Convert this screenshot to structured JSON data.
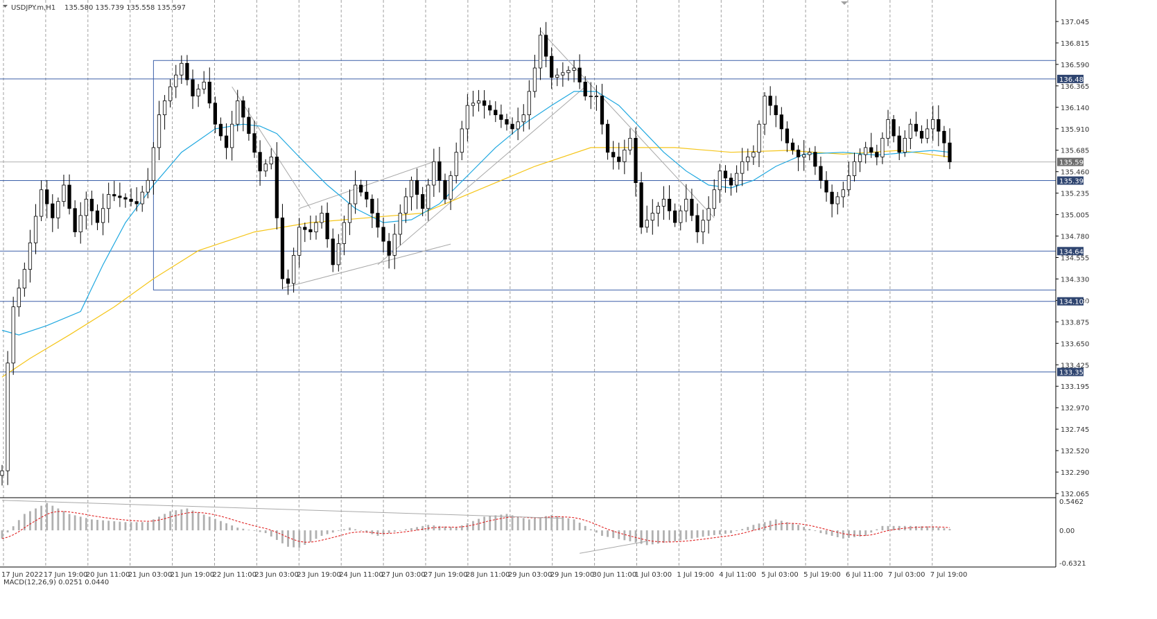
{
  "header": {
    "title": "USDJPY.m,H1",
    "ohlc": "135.580 135.739 135.558 135.597"
  },
  "macd": {
    "label": "MACD(12,26,9) 0.0251 0.0440",
    "axis_labels": [
      "0.5462",
      "0.00",
      "-0.6321"
    ]
  },
  "colors": {
    "background": "#ffffff",
    "grid": "#808080",
    "candle_bull": "#000000",
    "candle_bear": "#000000",
    "ma_fast": "#1fa8e0",
    "ma_slow": "#f5c518",
    "levels": "#3b5fa8",
    "macd_hist": "#b0b0b0",
    "macd_signal": "#e02020",
    "price_tag_bg": "#2f4570",
    "current_tag_bg": "#6e6e6e"
  },
  "chart_data": {
    "type": "line",
    "title": "USDJPY.m,H1",
    "x_tick_labels": [
      "17 Jun 2022",
      "17 Jun 19:00",
      "20 Jun 11:00",
      "21 Jun 03:00",
      "21 Jun 19:00",
      "22 Jun 11:00",
      "23 Jun 03:00",
      "23 Jun 19:00",
      "24 Jun 11:00",
      "27 Jun 03:00",
      "27 Jun 19:00",
      "28 Jun 11:00",
      "29 Jun 03:00",
      "29 Jun 19:00",
      "30 Jun 11:00",
      "1 Jul 03:00",
      "1 Jul 19:00",
      "4 Jul 11:00",
      "5 Jul 03:00",
      "5 Jul 19:00",
      "6 Jul 11:00",
      "7 Jul 03:00",
      "7 Jul 19:00"
    ],
    "y_tick_labels": [
      "137.045",
      "136.815",
      "136.590",
      "136.365",
      "136.140",
      "135.910",
      "135.685",
      "135.460",
      "135.235",
      "135.005",
      "134.780",
      "134.555",
      "134.330",
      "134.100",
      "133.875",
      "133.650",
      "133.425",
      "133.195",
      "132.970",
      "132.745",
      "132.520",
      "132.290",
      "132.065"
    ],
    "ylim": [
      132.02,
      137.2
    ],
    "price_levels": [
      {
        "label": "136.483",
        "value": 136.483
      },
      {
        "label": "135.398",
        "value": 135.398
      },
      {
        "label": "134.645",
        "value": 134.645
      },
      {
        "label": "134.109",
        "value": 134.109
      },
      {
        "label": "133.355",
        "value": 133.355
      }
    ],
    "current_price": {
      "label": "135.597",
      "value": 135.597
    },
    "rectangle": {
      "x_from_index": 27,
      "x_to_index": 187,
      "y_top": 136.68,
      "y_bottom": 134.23
    },
    "anchors": [
      {
        "i": 0,
        "p": 132.3
      },
      {
        "i": 1,
        "p": 133.45
      },
      {
        "i": 2,
        "p": 134.05
      },
      {
        "i": 4,
        "p": 134.45
      },
      {
        "i": 7,
        "p": 135.3
      },
      {
        "i": 9,
        "p": 135.0
      },
      {
        "i": 11,
        "p": 135.35
      },
      {
        "i": 13,
        "p": 134.85
      },
      {
        "i": 15,
        "p": 135.2
      },
      {
        "i": 17,
        "p": 134.95
      },
      {
        "i": 19,
        "p": 135.25
      },
      {
        "i": 22,
        "p": 135.2
      },
      {
        "i": 24,
        "p": 135.15
      },
      {
        "i": 26,
        "p": 135.4
      },
      {
        "i": 28,
        "p": 136.1
      },
      {
        "i": 30,
        "p": 136.4
      },
      {
        "i": 32,
        "p": 136.65
      },
      {
        "i": 34,
        "p": 136.3
      },
      {
        "i": 36,
        "p": 136.45
      },
      {
        "i": 38,
        "p": 136.0
      },
      {
        "i": 40,
        "p": 135.75
      },
      {
        "i": 42,
        "p": 136.25
      },
      {
        "i": 44,
        "p": 135.9
      },
      {
        "i": 46,
        "p": 135.5
      },
      {
        "i": 48,
        "p": 135.65
      },
      {
        "i": 50,
        "p": 134.35
      },
      {
        "i": 51,
        "p": 134.3
      },
      {
        "i": 53,
        "p": 134.9
      },
      {
        "i": 55,
        "p": 134.85
      },
      {
        "i": 57,
        "p": 135.05
      },
      {
        "i": 59,
        "p": 134.5
      },
      {
        "i": 61,
        "p": 134.95
      },
      {
        "i": 63,
        "p": 135.35
      },
      {
        "i": 65,
        "p": 135.2
      },
      {
        "i": 67,
        "p": 134.9
      },
      {
        "i": 69,
        "p": 134.6
      },
      {
        "i": 71,
        "p": 135.05
      },
      {
        "i": 73,
        "p": 135.4
      },
      {
        "i": 75,
        "p": 135.1
      },
      {
        "i": 77,
        "p": 135.6
      },
      {
        "i": 79,
        "p": 135.2
      },
      {
        "i": 81,
        "p": 135.7
      },
      {
        "i": 83,
        "p": 136.2
      },
      {
        "i": 85,
        "p": 136.25
      },
      {
        "i": 87,
        "p": 136.15
      },
      {
        "i": 89,
        "p": 136.05
      },
      {
        "i": 91,
        "p": 135.95
      },
      {
        "i": 93,
        "p": 136.1
      },
      {
        "i": 95,
        "p": 136.6
      },
      {
        "i": 96,
        "p": 136.95
      },
      {
        "i": 98,
        "p": 136.5
      },
      {
        "i": 100,
        "p": 136.55
      },
      {
        "i": 102,
        "p": 136.6
      },
      {
        "i": 104,
        "p": 136.3
      },
      {
        "i": 106,
        "p": 136.3
      },
      {
        "i": 108,
        "p": 135.7
      },
      {
        "i": 110,
        "p": 135.6
      },
      {
        "i": 112,
        "p": 135.85
      },
      {
        "i": 114,
        "p": 134.9
      },
      {
        "i": 116,
        "p": 135.05
      },
      {
        "i": 118,
        "p": 135.2
      },
      {
        "i": 120,
        "p": 134.95
      },
      {
        "i": 122,
        "p": 135.2
      },
      {
        "i": 124,
        "p": 134.85
      },
      {
        "i": 126,
        "p": 135.1
      },
      {
        "i": 128,
        "p": 135.5
      },
      {
        "i": 130,
        "p": 135.35
      },
      {
        "i": 132,
        "p": 135.6
      },
      {
        "i": 134,
        "p": 135.7
      },
      {
        "i": 136,
        "p": 136.3
      },
      {
        "i": 138,
        "p": 136.1
      },
      {
        "i": 140,
        "p": 135.8
      },
      {
        "i": 142,
        "p": 135.65
      },
      {
        "i": 144,
        "p": 135.7
      },
      {
        "i": 146,
        "p": 135.4
      },
      {
        "i": 148,
        "p": 135.15
      },
      {
        "i": 150,
        "p": 135.3
      },
      {
        "i": 152,
        "p": 135.6
      },
      {
        "i": 154,
        "p": 135.75
      },
      {
        "i": 156,
        "p": 135.65
      },
      {
        "i": 158,
        "p": 136.05
      },
      {
        "i": 160,
        "p": 135.7
      },
      {
        "i": 162,
        "p": 136.0
      },
      {
        "i": 164,
        "p": 135.85
      },
      {
        "i": 166,
        "p": 136.05
      },
      {
        "i": 168,
        "p": 135.8
      },
      {
        "i": 169,
        "p": 135.597
      }
    ],
    "ma_fast": [
      {
        "i": 0,
        "p": 133.8
      },
      {
        "i": 3,
        "p": 133.75
      },
      {
        "i": 8,
        "p": 133.85
      },
      {
        "i": 14,
        "p": 134.0
      },
      {
        "i": 18,
        "p": 134.5
      },
      {
        "i": 22,
        "p": 134.95
      },
      {
        "i": 27,
        "p": 135.35
      },
      {
        "i": 32,
        "p": 135.7
      },
      {
        "i": 38,
        "p": 135.95
      },
      {
        "i": 43,
        "p": 136.0
      },
      {
        "i": 46,
        "p": 135.98
      },
      {
        "i": 49,
        "p": 135.9
      },
      {
        "i": 53,
        "p": 135.65
      },
      {
        "i": 58,
        "p": 135.35
      },
      {
        "i": 63,
        "p": 135.1
      },
      {
        "i": 68,
        "p": 134.95
      },
      {
        "i": 73,
        "p": 134.98
      },
      {
        "i": 78,
        "p": 135.15
      },
      {
        "i": 83,
        "p": 135.45
      },
      {
        "i": 88,
        "p": 135.75
      },
      {
        "i": 93,
        "p": 136.0
      },
      {
        "i": 98,
        "p": 136.2
      },
      {
        "i": 102,
        "p": 136.35
      },
      {
        "i": 106,
        "p": 136.35
      },
      {
        "i": 110,
        "p": 136.2
      },
      {
        "i": 114,
        "p": 135.95
      },
      {
        "i": 118,
        "p": 135.7
      },
      {
        "i": 122,
        "p": 135.5
      },
      {
        "i": 126,
        "p": 135.35
      },
      {
        "i": 130,
        "p": 135.32
      },
      {
        "i": 134,
        "p": 135.4
      },
      {
        "i": 138,
        "p": 135.55
      },
      {
        "i": 143,
        "p": 135.68
      },
      {
        "i": 150,
        "p": 135.7
      },
      {
        "i": 156,
        "p": 135.67
      },
      {
        "i": 162,
        "p": 135.7
      },
      {
        "i": 166,
        "p": 135.72
      },
      {
        "i": 169,
        "p": 135.7
      }
    ],
    "ma_slow": [
      {
        "i": 0,
        "p": 133.3
      },
      {
        "i": 5,
        "p": 133.5
      },
      {
        "i": 12,
        "p": 133.75
      },
      {
        "i": 20,
        "p": 134.05
      },
      {
        "i": 27,
        "p": 134.35
      },
      {
        "i": 35,
        "p": 134.65
      },
      {
        "i": 45,
        "p": 134.85
      },
      {
        "i": 55,
        "p": 134.95
      },
      {
        "i": 65,
        "p": 135.0
      },
      {
        "i": 75,
        "p": 135.05
      },
      {
        "i": 85,
        "p": 135.3
      },
      {
        "i": 95,
        "p": 135.55
      },
      {
        "i": 105,
        "p": 135.75
      },
      {
        "i": 112,
        "p": 135.75
      },
      {
        "i": 120,
        "p": 135.75
      },
      {
        "i": 130,
        "p": 135.7
      },
      {
        "i": 140,
        "p": 135.72
      },
      {
        "i": 150,
        "p": 135.68
      },
      {
        "i": 160,
        "p": 135.72
      },
      {
        "i": 169,
        "p": 135.65
      }
    ],
    "trendlines": [
      {
        "i1": 50,
        "p1": 134.25,
        "i2": 80,
        "p2": 134.72
      },
      {
        "i1": 53,
        "p1": 135.1,
        "i2": 77,
        "p2": 135.6
      },
      {
        "i1": 67,
        "p1": 134.5,
        "i2": 104,
        "p2": 136.4
      },
      {
        "i1": 41,
        "p1": 136.4,
        "i2": 55,
        "p2": 135.1
      },
      {
        "i1": 96,
        "p1": 137.0,
        "i2": 127,
        "p2": 135.0
      }
    ],
    "macd_anchors": [
      {
        "i": 0,
        "v": -0.15
      },
      {
        "i": 4,
        "v": 0.3
      },
      {
        "i": 8,
        "v": 0.5
      },
      {
        "i": 12,
        "v": 0.3
      },
      {
        "i": 16,
        "v": 0.2
      },
      {
        "i": 22,
        "v": 0.15
      },
      {
        "i": 26,
        "v": 0.15
      },
      {
        "i": 30,
        "v": 0.35
      },
      {
        "i": 33,
        "v": 0.4
      },
      {
        "i": 37,
        "v": 0.25
      },
      {
        "i": 42,
        "v": 0.05
      },
      {
        "i": 47,
        "v": -0.05
      },
      {
        "i": 51,
        "v": -0.3
      },
      {
        "i": 53,
        "v": -0.32
      },
      {
        "i": 57,
        "v": -0.1
      },
      {
        "i": 62,
        "v": 0.05
      },
      {
        "i": 67,
        "v": -0.1
      },
      {
        "i": 71,
        "v": 0.0
      },
      {
        "i": 76,
        "v": 0.1
      },
      {
        "i": 81,
        "v": 0.05
      },
      {
        "i": 86,
        "v": 0.25
      },
      {
        "i": 90,
        "v": 0.3
      },
      {
        "i": 94,
        "v": 0.2
      },
      {
        "i": 98,
        "v": 0.28
      },
      {
        "i": 102,
        "v": 0.2
      },
      {
        "i": 107,
        "v": -0.1
      },
      {
        "i": 112,
        "v": -0.2
      },
      {
        "i": 115,
        "v": -0.27
      },
      {
        "i": 120,
        "v": -0.2
      },
      {
        "i": 126,
        "v": -0.1
      },
      {
        "i": 130,
        "v": -0.05
      },
      {
        "i": 134,
        "v": 0.1
      },
      {
        "i": 138,
        "v": 0.2
      },
      {
        "i": 142,
        "v": 0.1
      },
      {
        "i": 146,
        "v": -0.05
      },
      {
        "i": 150,
        "v": -0.15
      },
      {
        "i": 154,
        "v": -0.1
      },
      {
        "i": 157,
        "v": 0.08
      },
      {
        "i": 162,
        "v": 0.08
      },
      {
        "i": 166,
        "v": 0.07
      },
      {
        "i": 169,
        "v": 0.025
      }
    ],
    "macd_ylim": [
      -0.6321,
      0.5462
    ],
    "macd_lines": [
      {
        "i1": 0,
        "v1": 0.55,
        "i2": 100,
        "v2": 0.22
      },
      {
        "i1": 103,
        "v1": -0.42,
        "i2": 115,
        "v2": -0.2
      }
    ]
  }
}
